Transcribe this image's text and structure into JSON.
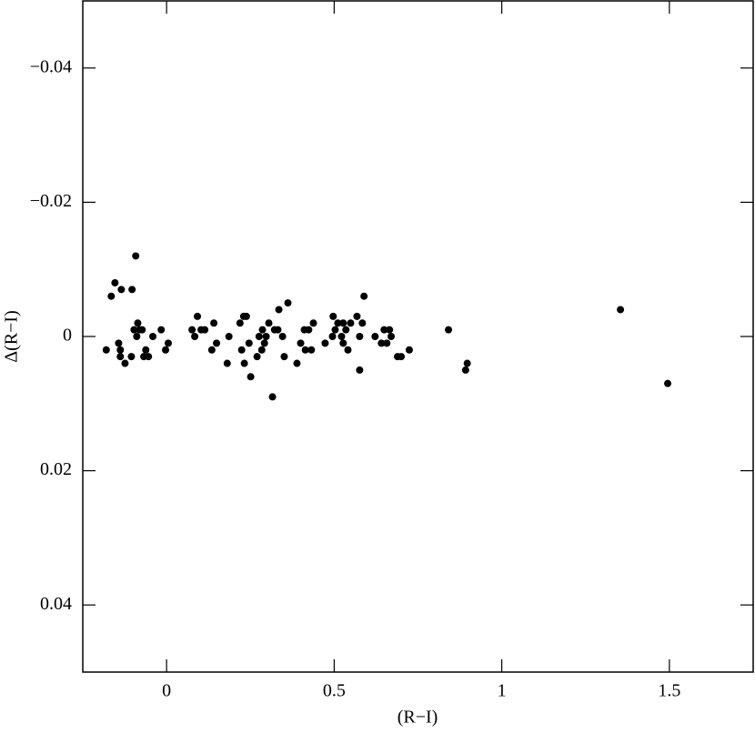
{
  "chart_data": {
    "type": "scatter",
    "xlabel": "(R−I)",
    "ylabel": "Δ(R−I)",
    "xlim": [
      -0.25,
      1.75
    ],
    "xticks": [
      0,
      0.5,
      1,
      1.5
    ],
    "ylim": [
      -0.05,
      0.05
    ],
    "y_inverted": true,
    "yticks": [
      {
        "value": -0.04,
        "label": "−0.04"
      },
      {
        "value": -0.02,
        "label": "−0.02"
      },
      0,
      0.02,
      0.04
    ],
    "color": "#000000",
    "x": [
      -0.18,
      -0.165,
      -0.154,
      -0.135,
      -0.143,
      -0.138,
      -0.138,
      -0.124,
      -0.105,
      -0.103,
      -0.092,
      -0.097,
      -0.089,
      -0.086,
      -0.081,
      -0.073,
      -0.068,
      -0.062,
      -0.054,
      -0.041,
      -0.016,
      -0.003,
      0.005,
      0.076,
      0.084,
      0.092,
      0.103,
      0.114,
      0.135,
      0.141,
      0.149,
      0.181,
      0.186,
      0.219,
      0.224,
      0.23,
      0.238,
      0.232,
      0.246,
      0.251,
      0.27,
      0.276,
      0.284,
      0.286,
      0.292,
      0.297,
      0.305,
      0.316,
      0.322,
      0.332,
      0.335,
      0.346,
      0.351,
      0.362,
      0.389,
      0.4,
      0.411,
      0.414,
      0.424,
      0.432,
      0.438,
      0.473,
      0.497,
      0.503,
      0.495,
      0.511,
      0.522,
      0.527,
      0.527,
      0.535,
      0.541,
      0.549,
      0.568,
      0.576,
      0.576,
      0.584,
      0.589,
      0.622,
      0.641,
      0.649,
      0.657,
      0.665,
      0.67,
      0.689,
      0.7,
      0.724,
      0.841,
      0.892,
      0.897,
      1.354,
      1.495
    ],
    "values": [
      0.002,
      -0.006,
      -0.008,
      -0.007,
      0.001,
      0.002,
      0.003,
      0.004,
      0.003,
      -0.007,
      -0.012,
      -0.001,
      0,
      -0.002,
      -0.001,
      -0.001,
      0.003,
      0.002,
      0.003,
      0,
      -0.001,
      0.002,
      0.001,
      -0.001,
      0,
      -0.003,
      -0.001,
      -0.001,
      0.002,
      -0.002,
      0.001,
      0.004,
      0,
      -0.002,
      0.002,
      -0.003,
      -0.003,
      0.004,
      0.001,
      0.006,
      0.003,
      0,
      0.002,
      -0.001,
      0.001,
      0,
      -0.002,
      0.009,
      -0.001,
      -0.001,
      -0.004,
      0,
      0.003,
      -0.005,
      0.004,
      0.001,
      -0.001,
      0.002,
      -0.001,
      0.002,
      -0.002,
      0.001,
      -0.003,
      -0.001,
      0,
      -0.002,
      0,
      0.001,
      -0.002,
      -0.001,
      0.002,
      -0.002,
      -0.003,
      0,
      0.005,
      -0.002,
      -0.006,
      0,
      0.001,
      -0.001,
      0.001,
      -0.001,
      0,
      0.003,
      0.003,
      0.002,
      -0.001,
      0.005,
      0.004,
      -0.004,
      0.007
    ]
  }
}
